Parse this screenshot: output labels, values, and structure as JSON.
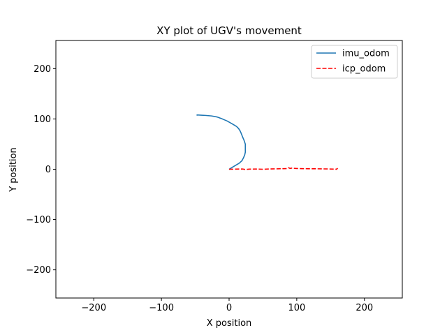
{
  "chart_data": {
    "type": "line",
    "title": "XY plot of UGV's movement",
    "xlabel": "X position",
    "ylabel": "Y position",
    "xlim": [
      -256,
      256
    ],
    "ylim": [
      -256,
      256
    ],
    "xticks": [
      -200,
      -100,
      0,
      100,
      200
    ],
    "yticks": [
      -200,
      -100,
      0,
      100,
      200
    ],
    "xtick_labels": [
      "−200",
      "−100",
      "0",
      "100",
      "200"
    ],
    "ytick_labels": [
      "−200",
      "−100",
      "0",
      "100",
      "200"
    ],
    "grid": false,
    "legend_position": "top-right",
    "series": [
      {
        "name": "imu_odom",
        "color": "#1f77b4",
        "style": "solid",
        "points": [
          [
            0,
            0
          ],
          [
            5,
            4
          ],
          [
            10,
            8
          ],
          [
            15,
            12
          ],
          [
            19,
            17
          ],
          [
            21,
            22
          ],
          [
            23,
            28
          ],
          [
            24,
            34
          ],
          [
            24,
            42
          ],
          [
            24,
            50
          ],
          [
            22,
            58
          ],
          [
            20,
            64
          ],
          [
            18,
            71
          ],
          [
            16,
            77
          ],
          [
            14,
            81
          ],
          [
            11,
            85
          ],
          [
            5,
            90
          ],
          [
            -3,
            96
          ],
          [
            -10,
            100
          ],
          [
            -18,
            104
          ],
          [
            -26,
            106
          ],
          [
            -35,
            107
          ],
          [
            -41,
            107.5
          ],
          [
            -47,
            108
          ],
          [
            -48,
            107
          ]
        ]
      },
      {
        "name": "icp_odom",
        "color": "#ff0000",
        "style": "dashed",
        "points": [
          [
            0,
            0
          ],
          [
            10,
            0.3
          ],
          [
            20,
            0.5
          ],
          [
            24,
            -0.5
          ],
          [
            30,
            0.3
          ],
          [
            40,
            0.4
          ],
          [
            50,
            0
          ],
          [
            60,
            0.6
          ],
          [
            70,
            0.8
          ],
          [
            80,
            1.2
          ],
          [
            86,
            1.4
          ],
          [
            88,
            3
          ],
          [
            90,
            1.6
          ],
          [
            92,
            2.2
          ],
          [
            100,
            1.5
          ],
          [
            110,
            1.2
          ],
          [
            120,
            1.0
          ],
          [
            130,
            0.9
          ],
          [
            140,
            0.7
          ],
          [
            150,
            0.5
          ],
          [
            155,
            0.3
          ],
          [
            159,
            0
          ],
          [
            160,
            1.5
          ],
          [
            158,
            -0.5
          ]
        ]
      }
    ]
  }
}
